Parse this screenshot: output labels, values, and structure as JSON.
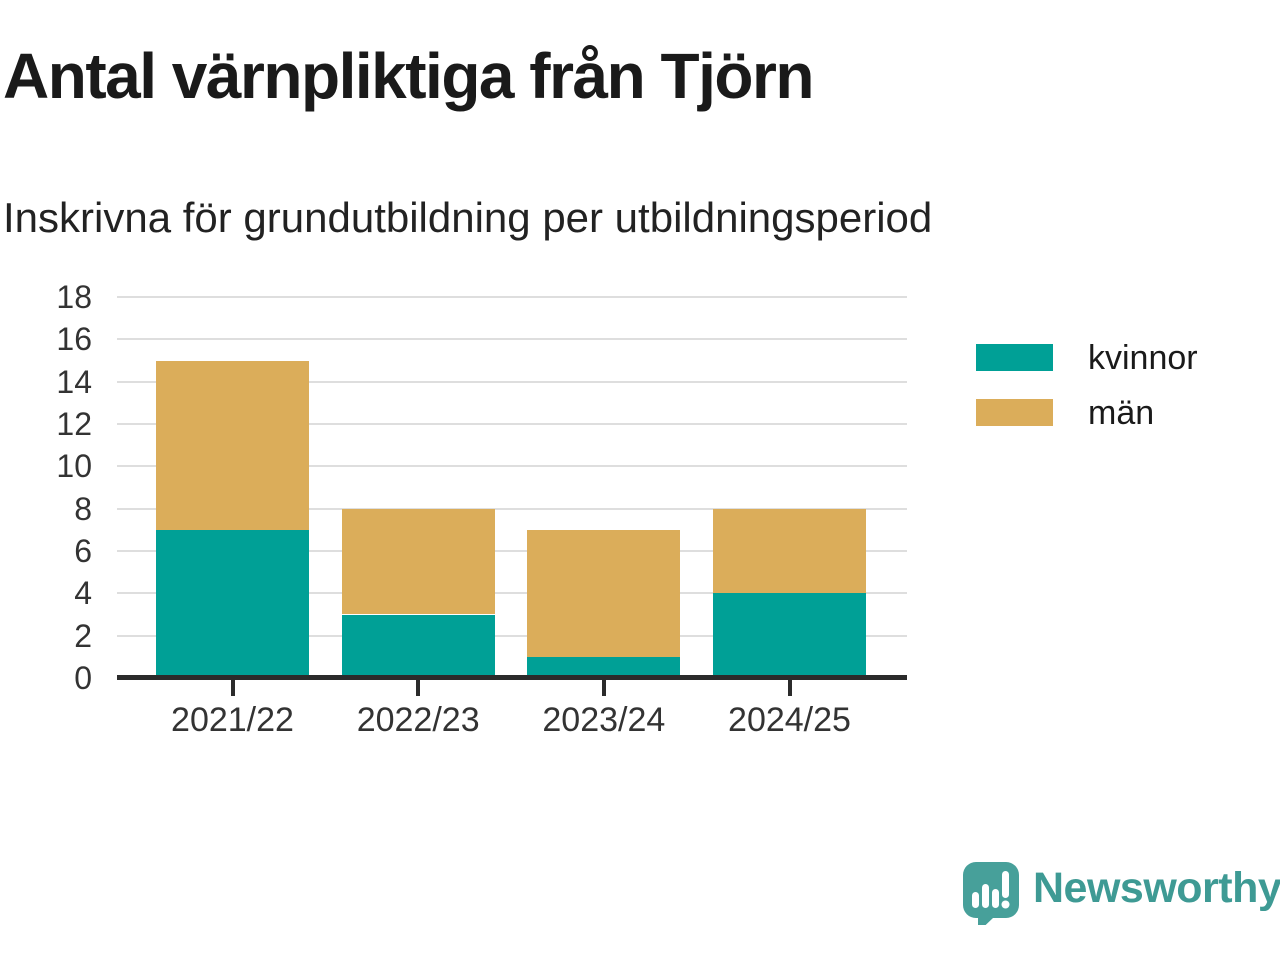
{
  "header": {
    "title": "Antal värnpliktiga från Tjörn",
    "subtitle": "Inskrivna för grundutbildning per utbildningsperiod"
  },
  "chart_data": {
    "type": "bar",
    "stacked": true,
    "title": "Antal värnpliktiga från Tjörn",
    "subtitle": "Inskrivna för grundutbildning per utbildningsperiod",
    "categories": [
      "2021/22",
      "2022/23",
      "2023/24",
      "2024/25"
    ],
    "series": [
      {
        "name": "kvinnor",
        "color": "#00A096",
        "values": [
          7,
          3,
          1,
          4
        ]
      },
      {
        "name": "män",
        "color": "#DBAD5A",
        "values": [
          8,
          5,
          6,
          4
        ]
      }
    ],
    "totals": [
      15,
      8,
      7,
      8
    ],
    "xlabel": "",
    "ylabel": "",
    "ylim": [
      0,
      18
    ],
    "ytick_step": 2,
    "grid": true,
    "legend_position": "right"
  },
  "legend": {
    "items": [
      {
        "label": "kvinnor",
        "color": "#00A096"
      },
      {
        "label": "män",
        "color": "#DBAD5A"
      }
    ]
  },
  "footer": {
    "brand": "Newsworthy"
  },
  "colors": {
    "kvinnor": "#00A096",
    "man": "#DBAD5A",
    "grid": "#DEDEDE",
    "axis": "#2b2b2b",
    "axis_text": "#333333",
    "title_text": "#1a1a1a",
    "logo_bubble": "#47a09a",
    "logo_text": "#3e9a94",
    "background": "#ffffff"
  }
}
